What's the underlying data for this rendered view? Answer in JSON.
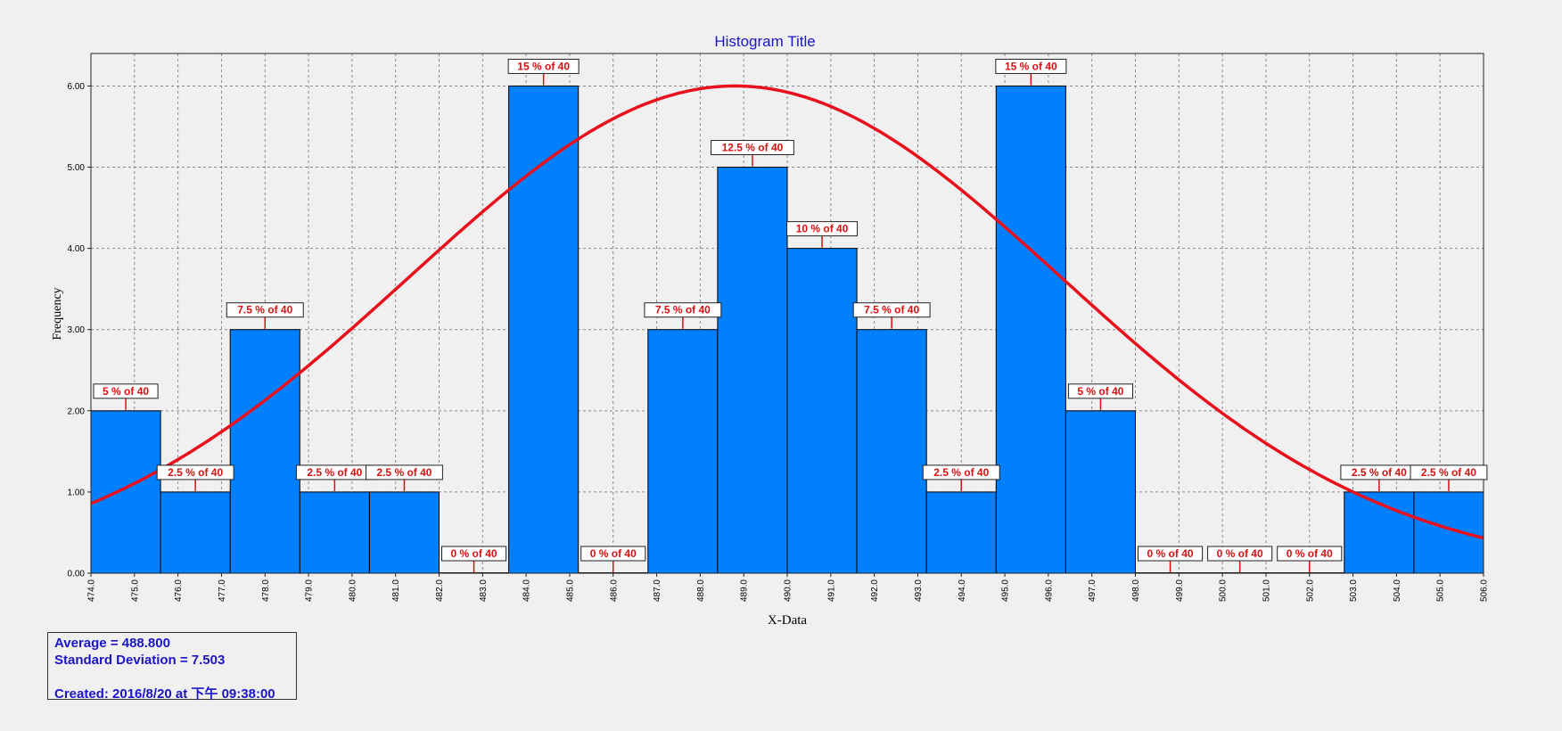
{
  "chart_data": {
    "type": "bar",
    "title": "Histogram Title",
    "xlabel": "X-Data",
    "ylabel": "Frequency",
    "ylim": [
      0,
      6.4
    ],
    "xlim": [
      474.0,
      506.0
    ],
    "y_ticks": [
      "0.00",
      "1.00",
      "2.00",
      "3.00",
      "4.00",
      "5.00",
      "6.00"
    ],
    "x_ticks": [
      "474.0",
      "475.0",
      "476.0",
      "477.0",
      "478.0",
      "479.0",
      "480.0",
      "481.0",
      "482.0",
      "483.0",
      "484.0",
      "485.0",
      "486.0",
      "487.0",
      "488.0",
      "489.0",
      "490.0",
      "491.0",
      "492.0",
      "493.0",
      "494.0",
      "495.0",
      "496.0",
      "497.0",
      "498.0",
      "499.0",
      "500.0",
      "501.0",
      "502.0",
      "503.0",
      "504.0",
      "505.0",
      "506.0"
    ],
    "bins": [
      {
        "start": 474.0,
        "end": 475.6,
        "value": 2,
        "label": "5 % of 40"
      },
      {
        "start": 475.6,
        "end": 477.2,
        "value": 1,
        "label": "2.5 % of 40"
      },
      {
        "start": 477.2,
        "end": 478.8,
        "value": 3,
        "label": "7.5 % of 40"
      },
      {
        "start": 478.8,
        "end": 480.4,
        "value": 1,
        "label": "2.5 % of 40"
      },
      {
        "start": 480.4,
        "end": 482.0,
        "value": 1,
        "label": "2.5 % of 40"
      },
      {
        "start": 482.0,
        "end": 483.6,
        "value": 0,
        "label": "0 % of 40"
      },
      {
        "start": 483.6,
        "end": 485.2,
        "value": 6,
        "label": "15 % of 40"
      },
      {
        "start": 485.2,
        "end": 486.8,
        "value": 0,
        "label": "0 % of 40"
      },
      {
        "start": 486.8,
        "end": 488.4,
        "value": 3,
        "label": "7.5 % of 40"
      },
      {
        "start": 488.4,
        "end": 490.0,
        "value": 5,
        "label": "12.5 % of 40"
      },
      {
        "start": 490.0,
        "end": 491.6,
        "value": 4,
        "label": "10 % of 40"
      },
      {
        "start": 491.6,
        "end": 493.2,
        "value": 3,
        "label": "7.5 % of 40"
      },
      {
        "start": 493.2,
        "end": 494.8,
        "value": 1,
        "label": "2.5 % of 40"
      },
      {
        "start": 494.8,
        "end": 496.4,
        "value": 6,
        "label": "15 % of 40"
      },
      {
        "start": 496.4,
        "end": 498.0,
        "value": 2,
        "label": "5 % of 40"
      },
      {
        "start": 498.0,
        "end": 499.6,
        "value": 0,
        "label": "0 % of 40"
      },
      {
        "start": 499.6,
        "end": 501.2,
        "value": 0,
        "label": "0 % of 40"
      },
      {
        "start": 501.2,
        "end": 502.8,
        "value": 0,
        "label": "0 % of 40"
      },
      {
        "start": 502.8,
        "end": 504.4,
        "value": 1,
        "label": "2.5 % of 40"
      },
      {
        "start": 504.4,
        "end": 506.0,
        "value": 1,
        "label": "2.5 % of 40"
      }
    ],
    "normal_curve": {
      "mean": 488.8,
      "std_dev": 7.503,
      "peak": 6.0
    },
    "grid": true,
    "colors": {
      "bar": "#0080ff",
      "curve": "#e8101c",
      "label_text": "#d81010",
      "title": "#1a16c8",
      "grid": "#8a8a8a",
      "background": "#f0f0f0"
    }
  },
  "stats": {
    "average": "Average = 488.800",
    "std_dev": "Standard Deviation = 7.503",
    "created": "Created: 2016/8/20 at 下午 09:38:00"
  }
}
